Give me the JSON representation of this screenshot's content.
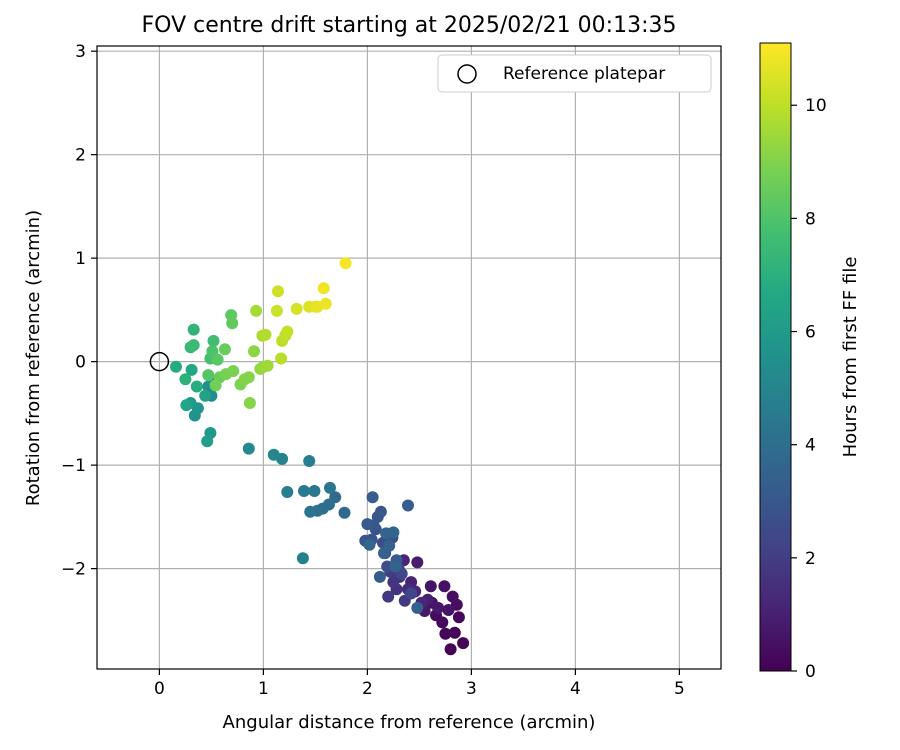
{
  "chart_data": {
    "type": "scatter",
    "title": "FOV centre drift starting at 2025/02/21 00:13:35",
    "xlabel": "Angular distance from reference (arcmin)",
    "ylabel": "Rotation from reference (arcmin)",
    "xlim": [
      -0.6,
      5.4
    ],
    "ylim": [
      -2.97,
      3.05
    ],
    "xticks": [
      0,
      1,
      2,
      3,
      4,
      5
    ],
    "yticks": [
      -2,
      -1,
      0,
      1,
      2,
      3
    ],
    "xtick_labels": [
      "0",
      "1",
      "2",
      "3",
      "4",
      "5"
    ],
    "ytick_labels": [
      "−2",
      "−1",
      "0",
      "1",
      "2",
      "3"
    ],
    "grid": true,
    "legend": {
      "position": "top-right",
      "entries": [
        "Reference platepar"
      ]
    },
    "reference_point": {
      "name": "Reference platepar",
      "x": 0,
      "y": 0
    },
    "colorbar": {
      "label": "Hours from first FF file",
      "colormap": "viridis",
      "range": [
        0,
        11.1
      ],
      "ticks": [
        0,
        2,
        4,
        6,
        8,
        10
      ],
      "tick_labels": [
        "0",
        "2",
        "4",
        "6",
        "8",
        "10"
      ]
    },
    "series": [
      {
        "points": [
          [
            2.8,
            -2.78,
            0.05
          ],
          [
            2.92,
            -2.72,
            0.1
          ],
          [
            2.84,
            -2.62,
            0.15
          ],
          [
            2.75,
            -2.63,
            0.2
          ],
          [
            2.88,
            -2.47,
            0.25
          ],
          [
            2.72,
            -2.52,
            0.3
          ],
          [
            2.66,
            -2.45,
            0.35
          ],
          [
            2.86,
            -2.35,
            0.4
          ],
          [
            2.82,
            -2.27,
            0.45
          ],
          [
            2.62,
            -2.33,
            0.5
          ],
          [
            2.74,
            -2.17,
            0.55
          ],
          [
            2.61,
            -2.17,
            0.6
          ],
          [
            2.78,
            -2.4,
            0.65
          ],
          [
            2.68,
            -2.38,
            0.7
          ],
          [
            2.55,
            -2.41,
            0.75
          ],
          [
            2.48,
            -1.94,
            0.85
          ],
          [
            2.58,
            -2.3,
            0.95
          ],
          [
            2.42,
            -2.13,
            1.05
          ],
          [
            2.35,
            -1.92,
            1.15
          ],
          [
            2.52,
            -2.33,
            1.2
          ],
          [
            2.46,
            -2.22,
            1.3
          ],
          [
            2.39,
            -2.2,
            1.4
          ],
          [
            2.31,
            -2.08,
            1.5
          ],
          [
            2.28,
            -2.2,
            1.6
          ],
          [
            2.25,
            -2.13,
            1.7
          ],
          [
            2.2,
            -2.27,
            1.8
          ],
          [
            2.36,
            -2.31,
            1.9
          ],
          [
            2.22,
            -2.03,
            2.0
          ],
          [
            2.3,
            -2.0,
            2.1
          ],
          [
            2.17,
            -1.85,
            2.2
          ],
          [
            2.42,
            -2.24,
            2.3
          ],
          [
            2.33,
            -2.05,
            2.4
          ],
          [
            2.15,
            -1.75,
            2.5
          ],
          [
            2.19,
            -1.98,
            2.6
          ],
          [
            2.24,
            -1.7,
            2.7
          ],
          [
            2.08,
            -1.62,
            2.8
          ],
          [
            2.04,
            -1.72,
            2.85
          ],
          [
            1.98,
            -1.73,
            2.9
          ],
          [
            2.1,
            -1.5,
            2.95
          ],
          [
            2.13,
            -1.45,
            3.0
          ],
          [
            2.06,
            -1.58,
            3.05
          ],
          [
            2.0,
            -1.57,
            3.1
          ],
          [
            2.28,
            -1.92,
            3.15
          ],
          [
            2.12,
            -2.08,
            3.2
          ],
          [
            2.05,
            -1.31,
            3.25
          ],
          [
            2.39,
            -1.39,
            3.3
          ],
          [
            2.48,
            -2.38,
            3.35
          ],
          [
            2.16,
            -1.85,
            3.4
          ],
          [
            2.21,
            -1.78,
            3.45
          ],
          [
            2.27,
            -1.98,
            3.5
          ],
          [
            2.18,
            -1.66,
            3.55
          ],
          [
            2.25,
            -1.65,
            3.6
          ],
          [
            2.02,
            -1.77,
            3.65
          ],
          [
            1.78,
            -1.46,
            3.75
          ],
          [
            1.69,
            -1.31,
            3.85
          ],
          [
            1.63,
            -1.38,
            3.95
          ],
          [
            1.57,
            -1.42,
            4.05
          ],
          [
            1.52,
            -1.44,
            4.15
          ],
          [
            1.45,
            -1.45,
            4.25
          ],
          [
            1.64,
            -1.22,
            4.35
          ],
          [
            1.49,
            -1.25,
            4.45
          ],
          [
            1.39,
            -1.25,
            4.55
          ],
          [
            1.23,
            -1.26,
            4.65
          ],
          [
            1.44,
            -0.96,
            4.75
          ],
          [
            1.38,
            -1.9,
            4.85
          ],
          [
            1.18,
            -0.94,
            4.95
          ],
          [
            1.1,
            -0.9,
            5.05
          ],
          [
            0.86,
            -0.84,
            5.15
          ],
          [
            0.5,
            -0.33,
            5.35
          ],
          [
            0.47,
            -0.24,
            5.5
          ],
          [
            0.34,
            -0.52,
            5.6
          ],
          [
            0.52,
            -0.2,
            5.7
          ],
          [
            0.37,
            -0.45,
            5.8
          ],
          [
            0.49,
            -0.69,
            5.9
          ],
          [
            0.3,
            -0.4,
            6.0
          ],
          [
            0.46,
            -0.77,
            6.15
          ],
          [
            0.44,
            -0.33,
            6.3
          ],
          [
            0.26,
            -0.42,
            6.45
          ],
          [
            0.31,
            -0.08,
            6.6
          ],
          [
            0.16,
            -0.05,
            6.75
          ],
          [
            0.36,
            -0.24,
            6.9
          ],
          [
            0.25,
            -0.17,
            7.05
          ],
          [
            0.33,
            0.31,
            7.2
          ],
          [
            0.3,
            0.14,
            7.35
          ],
          [
            0.33,
            0.16,
            7.5
          ],
          [
            0.52,
            0.2,
            7.65
          ],
          [
            0.49,
            0.03,
            7.8
          ],
          [
            0.51,
            0.1,
            7.95
          ],
          [
            0.47,
            -0.13,
            8.1
          ],
          [
            0.56,
            0.02,
            8.2
          ],
          [
            0.69,
            0.45,
            8.3
          ],
          [
            0.7,
            0.37,
            8.4
          ],
          [
            0.63,
            0.12,
            8.5
          ],
          [
            0.58,
            -0.15,
            8.6
          ],
          [
            0.54,
            -0.23,
            8.7
          ],
          [
            0.64,
            -0.12,
            8.8
          ],
          [
            0.71,
            -0.09,
            8.85
          ],
          [
            0.78,
            -0.22,
            8.9
          ],
          [
            0.82,
            -0.17,
            9.0
          ],
          [
            0.86,
            -0.15,
            9.05
          ],
          [
            0.87,
            -0.4,
            9.1
          ],
          [
            0.91,
            0.1,
            9.2
          ],
          [
            0.97,
            -0.07,
            9.3
          ],
          [
            1.0,
            -0.05,
            9.4
          ],
          [
            1.04,
            -0.04,
            9.5
          ],
          [
            0.93,
            0.49,
            9.6
          ],
          [
            0.99,
            0.25,
            9.7
          ],
          [
            1.02,
            0.26,
            9.8
          ],
          [
            1.17,
            0.03,
            9.9
          ],
          [
            1.18,
            0.2,
            9.95
          ],
          [
            1.21,
            0.25,
            10.0
          ],
          [
            1.23,
            0.29,
            10.1
          ],
          [
            1.13,
            0.49,
            10.2
          ],
          [
            1.14,
            0.68,
            10.3
          ],
          [
            1.32,
            0.51,
            10.4
          ],
          [
            1.44,
            0.53,
            10.5
          ],
          [
            1.5,
            0.53,
            10.6
          ],
          [
            1.52,
            0.53,
            10.7
          ],
          [
            1.6,
            0.56,
            10.8
          ],
          [
            1.58,
            0.71,
            10.85
          ],
          [
            1.79,
            0.95,
            11.0
          ]
        ]
      }
    ]
  }
}
